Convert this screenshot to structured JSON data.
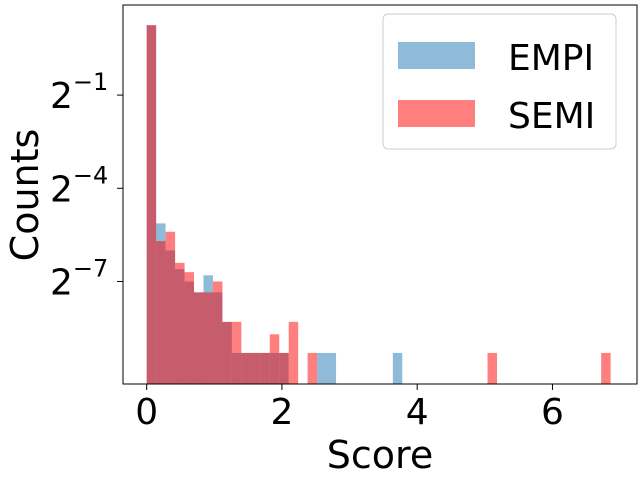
{
  "chart_data": {
    "type": "bar",
    "subtype": "overlaid-histogram",
    "title": "",
    "xlabel": "Score",
    "ylabel": "Counts",
    "xlim": [
      -0.35,
      7.25
    ],
    "y_scale": "log2",
    "ylim_log2": [
      -10.3,
      1.9
    ],
    "x_ticks": [
      0,
      2,
      4,
      6
    ],
    "x_tick_labels": [
      "0",
      "2",
      "4",
      "6"
    ],
    "y_ticks_log2": [
      -1,
      -4,
      -7
    ],
    "y_tick_labels": [
      {
        "base": "2",
        "exp": "−1"
      },
      {
        "base": "2",
        "exp": "−4"
      },
      {
        "base": "2",
        "exp": "−7"
      }
    ],
    "y_floor_log2": -10.3,
    "grid": false,
    "legend_position": "upper right",
    "bin_width": 0.14,
    "series": [
      {
        "name": "EMPI",
        "color": "#1f77b4",
        "alpha": 0.5,
        "bins": [
          {
            "x0": 0.0,
            "log2_count": 1.25
          },
          {
            "x0": 0.14,
            "log2_count": -5.13
          },
          {
            "x0": 0.28,
            "log2_count": -6.0
          },
          {
            "x0": 0.42,
            "log2_count": -6.6
          },
          {
            "x0": 0.56,
            "log2_count": -7.0
          },
          {
            "x0": 0.7,
            "log2_count": -7.35
          },
          {
            "x0": 0.84,
            "log2_count": -6.8
          },
          {
            "x0": 0.98,
            "log2_count": -7.35
          },
          {
            "x0": 1.12,
            "log2_count": -8.3
          },
          {
            "x0": 1.26,
            "log2_count": -9.3
          },
          {
            "x0": 1.4,
            "log2_count": -9.3
          },
          {
            "x0": 1.54,
            "log2_count": -9.3
          },
          {
            "x0": 1.68,
            "log2_count": -9.3
          },
          {
            "x0": 1.82,
            "log2_count": -9.3
          },
          {
            "x0": 1.96,
            "log2_count": -9.3
          },
          {
            "x0": 2.52,
            "log2_count": -9.3
          },
          {
            "x0": 2.66,
            "log2_count": -9.3
          },
          {
            "x0": 3.64,
            "log2_count": -9.3
          }
        ]
      },
      {
        "name": "SEMI",
        "color": "#ff0000",
        "alpha": 0.5,
        "bins": [
          {
            "x0": 0.0,
            "log2_count": 1.25
          },
          {
            "x0": 0.14,
            "log2_count": -5.7
          },
          {
            "x0": 0.28,
            "log2_count": -5.4
          },
          {
            "x0": 0.42,
            "log2_count": -6.4
          },
          {
            "x0": 0.56,
            "log2_count": -6.7
          },
          {
            "x0": 0.7,
            "log2_count": -7.35
          },
          {
            "x0": 0.84,
            "log2_count": -7.35
          },
          {
            "x0": 0.98,
            "log2_count": -7.0
          },
          {
            "x0": 1.12,
            "log2_count": -8.3
          },
          {
            "x0": 1.26,
            "log2_count": -8.3
          },
          {
            "x0": 1.4,
            "log2_count": -9.3
          },
          {
            "x0": 1.54,
            "log2_count": -9.3
          },
          {
            "x0": 1.68,
            "log2_count": -9.3
          },
          {
            "x0": 1.82,
            "log2_count": -8.7
          },
          {
            "x0": 1.96,
            "log2_count": -9.3
          },
          {
            "x0": 2.1,
            "log2_count": -8.3
          },
          {
            "x0": 2.38,
            "log2_count": -9.3
          },
          {
            "x0": 5.04,
            "log2_count": -9.3
          },
          {
            "x0": 6.72,
            "log2_count": -9.3
          }
        ]
      }
    ]
  }
}
